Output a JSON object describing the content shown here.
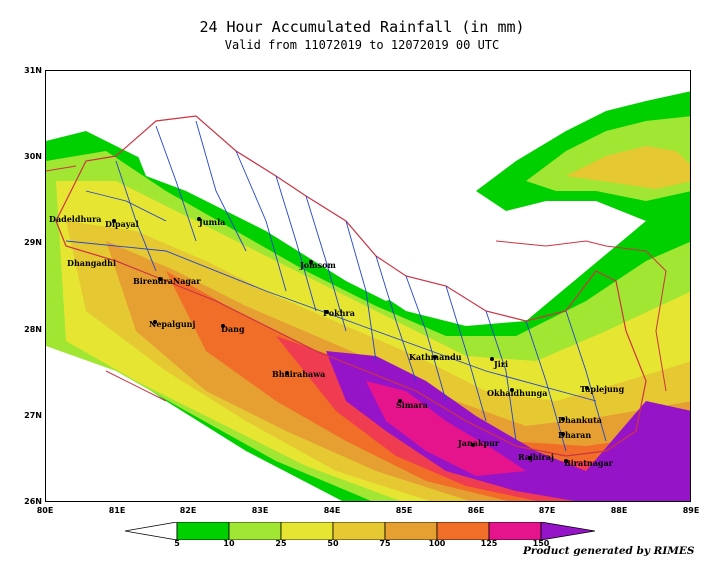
{
  "title": "24 Hour Accumulated  Rainfall (in mm)",
  "subtitle": "Valid from 11072019 to 12072019 00 UTC",
  "lat_labels": [
    "31N",
    "30N",
    "29N",
    "28N",
    "27N",
    "26N"
  ],
  "lon_labels": [
    "80E",
    "81E",
    "82E",
    "83E",
    "84E",
    "85E",
    "86E",
    "87E",
    "88E",
    "89E"
  ],
  "cities": [
    {
      "name": "Dadeldhura"
    },
    {
      "name": "Dipayal"
    },
    {
      "name": "Jumla"
    },
    {
      "name": "Dhangadhi"
    },
    {
      "name": "Jomsom"
    },
    {
      "name": "BirendraNagar"
    },
    {
      "name": "Nepalgunj"
    },
    {
      "name": "Dang"
    },
    {
      "name": "Pokhra"
    },
    {
      "name": "Kathmandu"
    },
    {
      "name": "Jiri"
    },
    {
      "name": "Bhairahawa"
    },
    {
      "name": "Okhaldhunga"
    },
    {
      "name": "Taplejung"
    },
    {
      "name": "Simara"
    },
    {
      "name": "Dhankuta"
    },
    {
      "name": "Dharan"
    },
    {
      "name": "Janakpur"
    },
    {
      "name": "Rajbiraj"
    },
    {
      "name": "Biratnagar"
    }
  ],
  "legend": {
    "ticks": [
      "5",
      "10",
      "25",
      "50",
      "75",
      "100",
      "125",
      "150"
    ],
    "colors": [
      "#ffffff",
      "#00d000",
      "#a0e632",
      "#e6e632",
      "#e6c832",
      "#e6a032",
      "#f06e28",
      "#f03c50",
      "#e6148c",
      "#9614c8"
    ]
  },
  "credit": "Product generated by RIMES"
}
